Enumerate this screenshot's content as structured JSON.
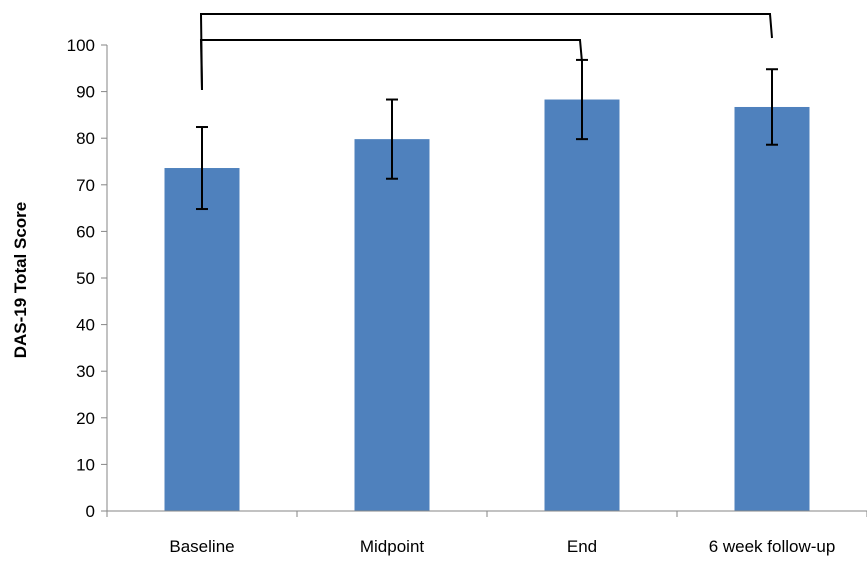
{
  "chart_data": {
    "type": "bar",
    "title": "",
    "xlabel": "",
    "ylabel": "DAS-19 Total Score",
    "ylim": [
      0,
      100
    ],
    "yticks": [
      0,
      10,
      20,
      30,
      40,
      50,
      60,
      70,
      80,
      90,
      100
    ],
    "categories": [
      "Baseline",
      "Midpoint",
      "End",
      "6 week follow-up"
    ],
    "values": [
      73.6,
      79.8,
      88.3,
      86.7
    ],
    "error_high": [
      82.4,
      88.3,
      96.8,
      94.8
    ],
    "error_low": [
      64.8,
      71.3,
      79.8,
      78.6
    ],
    "significance_brackets": [
      {
        "from": "Baseline",
        "to": "End"
      },
      {
        "from": "Baseline",
        "to": "6 week follow-up"
      }
    ],
    "grid": false,
    "legend": "none",
    "bar_color": "#4F81BD"
  }
}
